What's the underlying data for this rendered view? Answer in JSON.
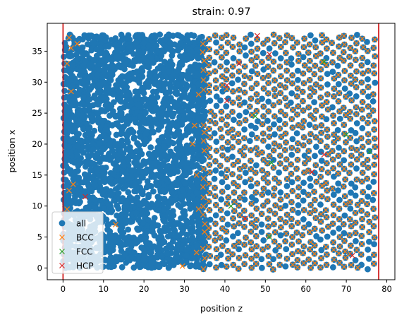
{
  "chart_data": {
    "type": "scatter",
    "title": "strain: 0.97",
    "xlabel": "position z",
    "ylabel": "position x",
    "xlim": [
      -3.9,
      82.0
    ],
    "ylim": [
      -1.9,
      39.5
    ],
    "xticks": [
      0,
      10,
      20,
      30,
      40,
      50,
      60,
      70,
      80
    ],
    "xtick_labels": [
      "0",
      "10",
      "20",
      "30",
      "40",
      "50",
      "60",
      "70",
      "80"
    ],
    "yticks": [
      0,
      5,
      10,
      15,
      20,
      25,
      30,
      35
    ],
    "ytick_labels": [
      "0",
      "5",
      "10",
      "15",
      "20",
      "25",
      "30",
      "35"
    ],
    "grid": false,
    "legend_position": "lower-left",
    "vlines": {
      "x": [
        0,
        78
      ],
      "color": "#cc0000"
    },
    "colors": {
      "all": "#1f77b4",
      "BCC": "#ff7f0e",
      "FCC": "#2ca02c",
      "HCP": "#d62728"
    },
    "lattice": {
      "spacing": 1.45,
      "z_range": [
        0,
        78
      ],
      "x_range": [
        0,
        37.7
      ],
      "amorphous_z_range": [
        0,
        36
      ]
    },
    "series": [
      {
        "name": "all",
        "marker": "o",
        "count_hint": "dense",
        "z_range": [
          0,
          78
        ],
        "x_range": [
          0,
          37.7
        ]
      },
      {
        "name": "BCC",
        "marker": "x",
        "crystal_z_range": [
          34,
          78
        ]
      },
      {
        "name": "FCC",
        "marker": "x",
        "points": [
          [
            51.5,
            17.0
          ],
          [
            41.5,
            10.0
          ],
          [
            64.5,
            33.3
          ],
          [
            75.8,
            18.8
          ],
          [
            51.0,
            5.0
          ],
          [
            47.5,
            24.5
          ],
          [
            70.0,
            21.5
          ]
        ]
      },
      {
        "name": "HCP",
        "marker": "x",
        "points": [
          [
            5.5,
            11.5
          ],
          [
            43.5,
            33.0
          ],
          [
            48.0,
            37.5
          ],
          [
            51.0,
            34.5
          ],
          [
            61.5,
            15.5
          ],
          [
            64.5,
            18.3
          ],
          [
            40.5,
            27.0
          ],
          [
            40.5,
            29.5
          ],
          [
            45.0,
            8.0
          ],
          [
            71.5,
            2.0
          ]
        ]
      }
    ]
  }
}
